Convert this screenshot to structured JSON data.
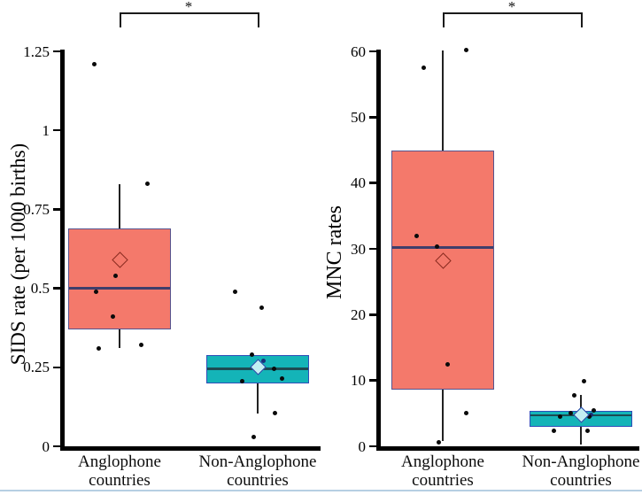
{
  "chart_data": [
    {
      "type": "boxplot",
      "ylabel": "SIDS rate (per 1000 births)",
      "ylim": [
        0,
        1.25
      ],
      "yticks": [
        0,
        0.25,
        0.5,
        0.75,
        1,
        1.25
      ],
      "ytick_labels": [
        "0",
        "0.25",
        "0.5",
        "0.75",
        "1",
        "1.25"
      ],
      "categories": [
        "Anglophone countries",
        "Non-Anglophone countries"
      ],
      "significance": "*",
      "legend": "none",
      "grid": false,
      "groups": [
        {
          "name": "Anglophone countries",
          "label_lines": [
            "Anglophone",
            "countries"
          ],
          "box": {
            "q1": 0.37,
            "median": 0.5,
            "q3": 0.69,
            "mean": 0.59,
            "whisker_low": 0.31,
            "whisker_high": 0.83
          },
          "points": [
            [
              1.21,
              -29
            ],
            [
              0.83,
              31
            ],
            [
              0.54,
              -5
            ],
            [
              0.49,
              -27
            ],
            [
              0.41,
              -8
            ],
            [
              0.32,
              24
            ],
            [
              0.31,
              -24
            ]
          ],
          "colors": {
            "fill": "#f4796b",
            "border": "#55538e",
            "median": "#3f3e6b",
            "diamond_border": "#8b2c21",
            "diamond_fill": "#f4796b"
          }
        },
        {
          "name": "Non-Anglophone countries",
          "label_lines": [
            "Non-Anglophone",
            "countries"
          ],
          "box": {
            "q1": 0.2,
            "median": 0.245,
            "q3": 0.29,
            "mean": 0.25,
            "whisker_low": 0.105,
            "whisker_high": 0.29
          },
          "points": [
            [
              0.49,
              -26
            ],
            [
              0.44,
              4
            ],
            [
              0.29,
              -7
            ],
            [
              0.27,
              6,
              "#1a2f7a"
            ],
            [
              0.245,
              18
            ],
            [
              0.215,
              27
            ],
            [
              0.205,
              -18
            ],
            [
              0.105,
              19
            ],
            [
              0.03,
              -5
            ]
          ],
          "colors": {
            "fill": "#14b4b8",
            "border": "#2f4db8",
            "median": "#1d4a52",
            "diamond_border": "#2345a8",
            "diamond_fill": "#c3eff2"
          }
        }
      ]
    },
    {
      "type": "boxplot",
      "ylabel": "MNC rates",
      "ylim": [
        0,
        60
      ],
      "yticks": [
        0,
        10,
        20,
        30,
        40,
        50,
        60
      ],
      "ytick_labels": [
        "0",
        "10",
        "20",
        "30",
        "40",
        "50",
        "60"
      ],
      "categories": [
        "Anglophone countries",
        "Non-Anglophone countries"
      ],
      "significance": "*",
      "legend": "none",
      "grid": false,
      "groups": [
        {
          "name": "Anglophone countries",
          "label_lines": [
            "Anglophone",
            "countries"
          ],
          "box": {
            "q1": 8.6,
            "median": 30.2,
            "q3": 45,
            "mean": 28.2,
            "whisker_low": 0.8,
            "whisker_high": 60.2
          },
          "points": [
            [
              60.2,
              26
            ],
            [
              57.5,
              -22
            ],
            [
              32,
              -30
            ],
            [
              30.3,
              -7
            ],
            [
              12.5,
              5
            ],
            [
              5,
              26
            ],
            [
              0.6,
              -5
            ]
          ],
          "colors": {
            "fill": "#f4796b",
            "border": "#55538e",
            "median": "#3f3e6b",
            "diamond_border": "#8b2c21",
            "diamond_fill": "#f4796b"
          }
        },
        {
          "name": "Non-Anglophone countries",
          "label_lines": [
            "Non-Anglophone",
            "countries"
          ],
          "box": {
            "q1": 2.9,
            "median": 4.7,
            "q3": 5.4,
            "mean": 4.8,
            "whisker_low": 0.3,
            "whisker_high": 7.8
          },
          "points": [
            [
              9.9,
              3
            ],
            [
              7.7,
              -8
            ],
            [
              5.4,
              14
            ],
            [
              5.1,
              -12
            ],
            [
              4.8,
              11,
              "#1a2f7a"
            ],
            [
              4.5,
              -24
            ],
            [
              4.5,
              9
            ],
            [
              2.3,
              -31
            ],
            [
              2.3,
              7
            ]
          ],
          "colors": {
            "fill": "#14b4b8",
            "border": "#2f4db8",
            "median": "#1d4a52",
            "diamond_border": "#2345a8",
            "diamond_fill": "#c3eff2"
          }
        }
      ]
    }
  ],
  "footer": {
    "rule_color": "#b6cfe3"
  }
}
